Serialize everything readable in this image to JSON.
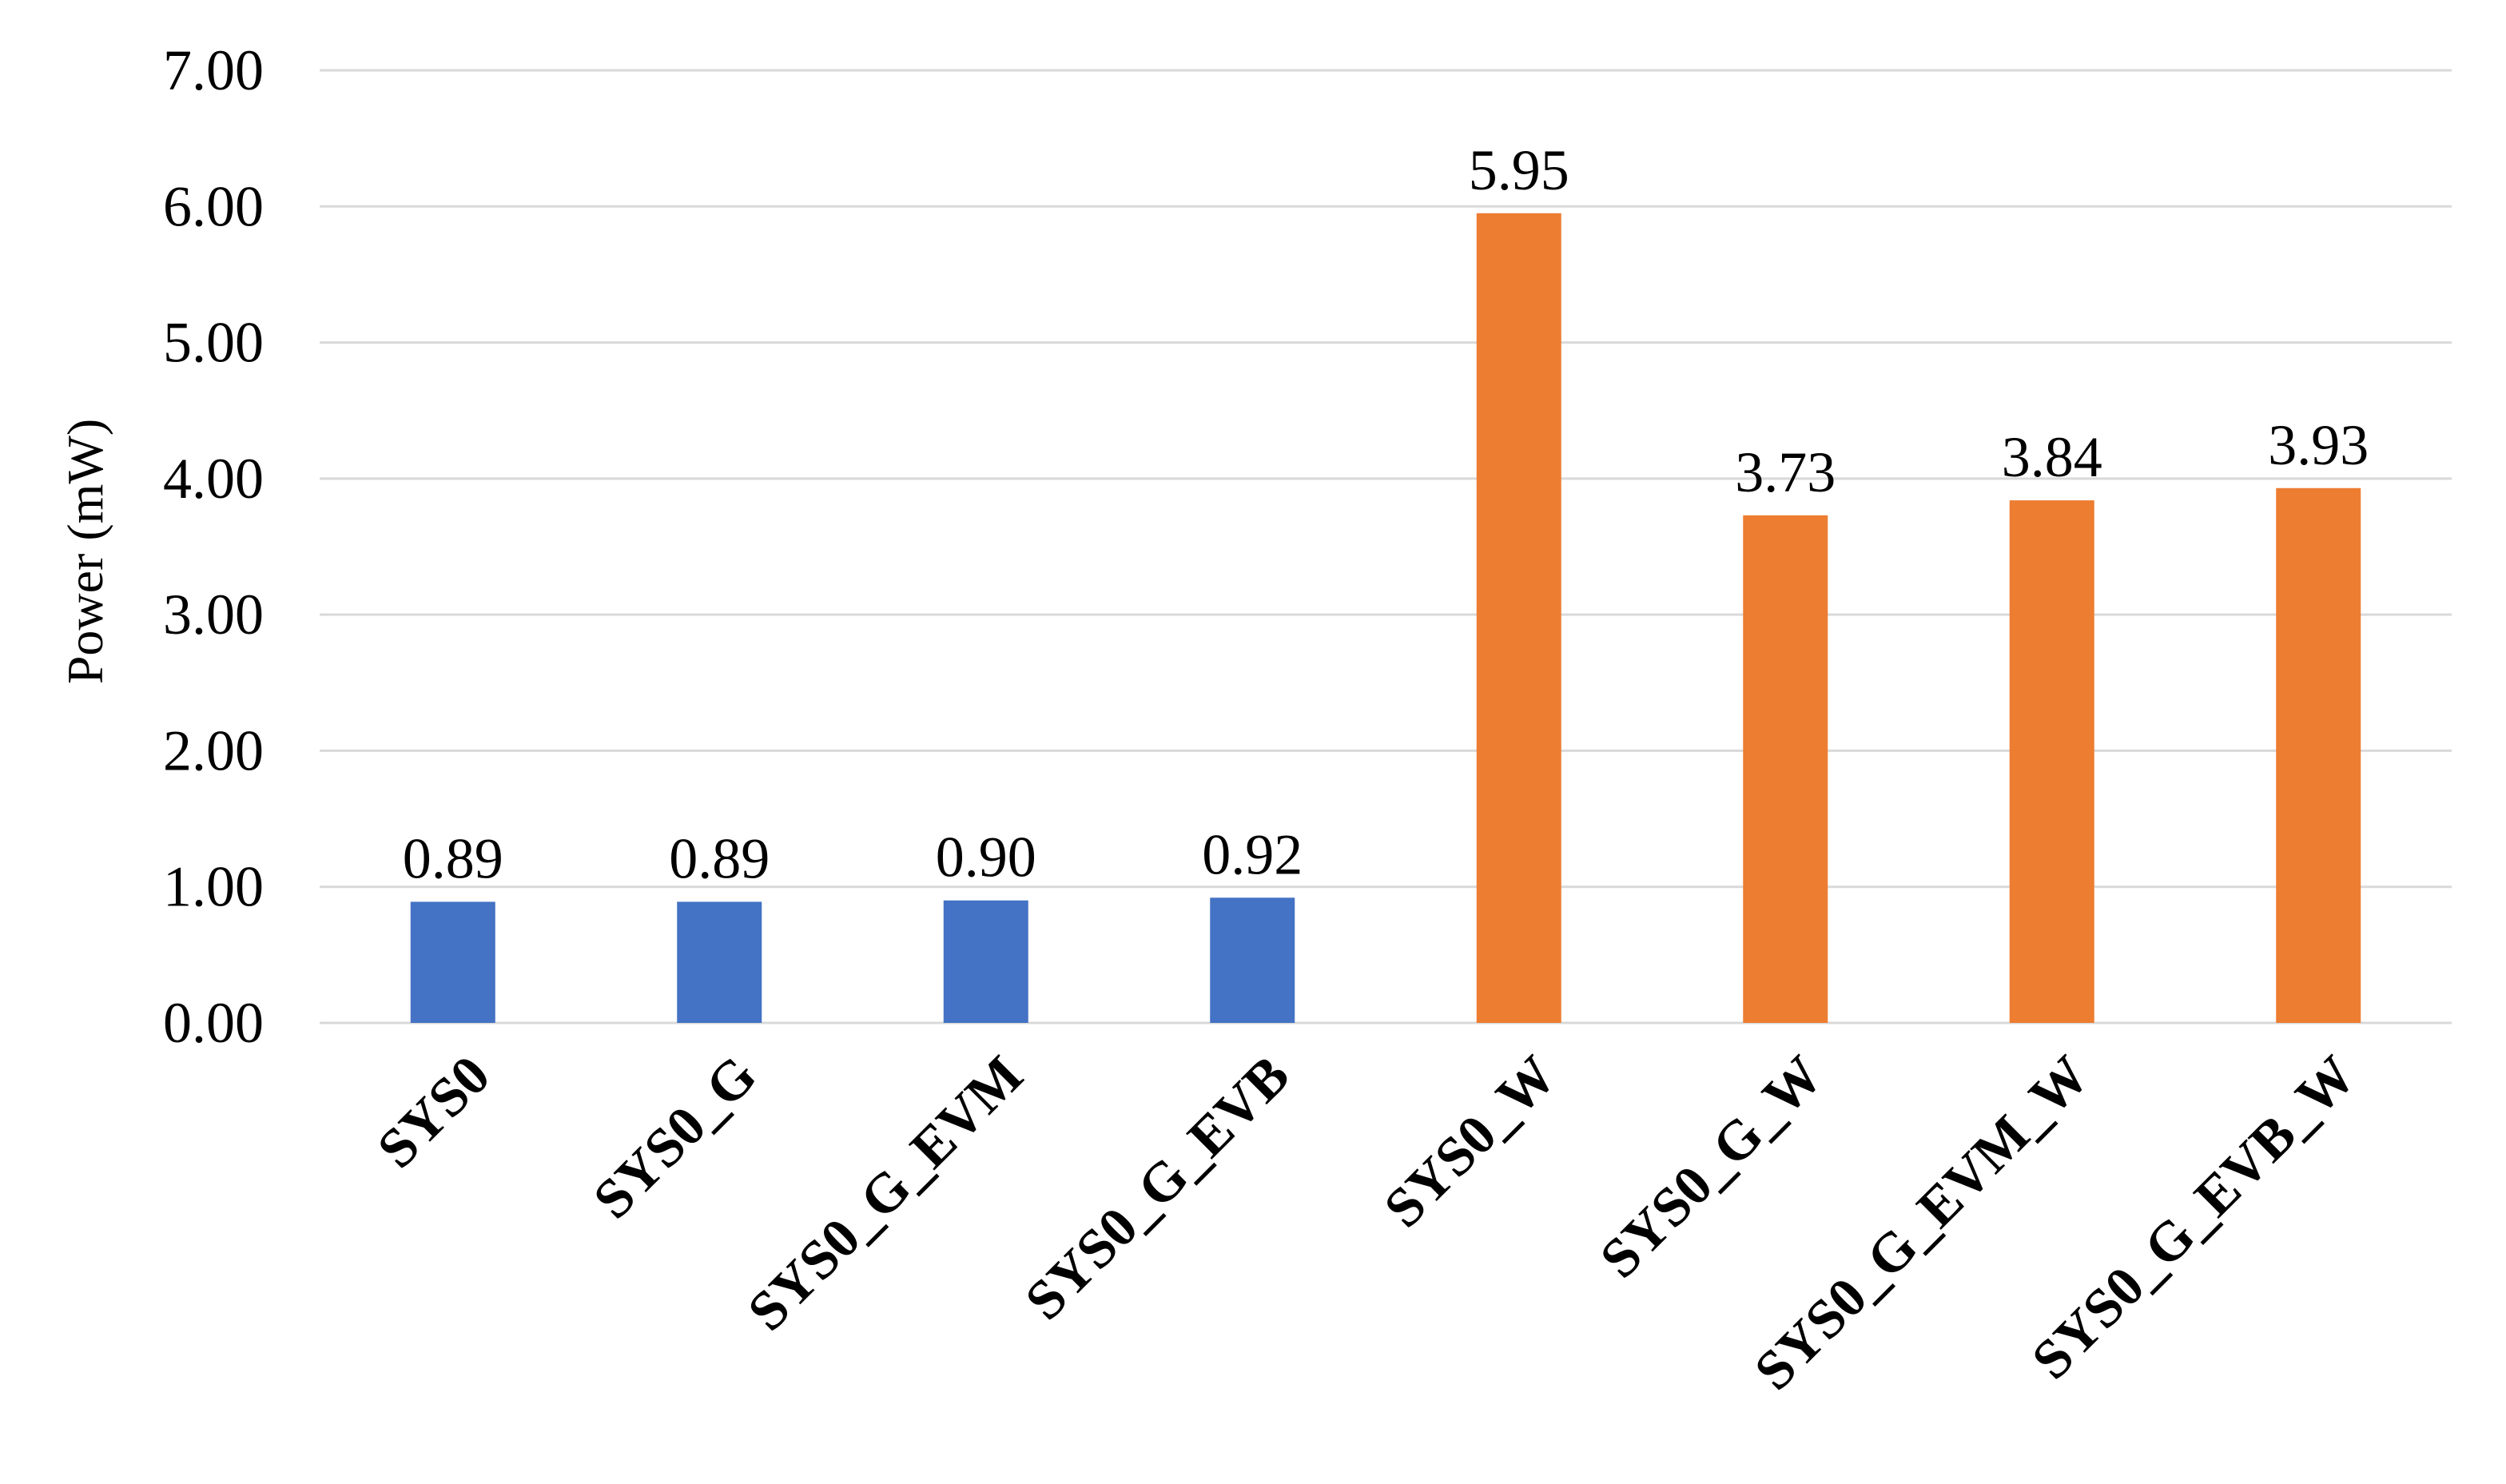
{
  "chart_data": {
    "type": "bar",
    "title": "",
    "xlabel": "",
    "ylabel": "Power (mW)",
    "ylim": [
      0,
      7
    ],
    "yticks": [
      0,
      1,
      2,
      3,
      4,
      5,
      6,
      7
    ],
    "ytick_labels": [
      "0.00",
      "1.00",
      "2.00",
      "3.00",
      "4.00",
      "5.00",
      "6.00",
      "7.00"
    ],
    "grid": true,
    "legend": "none",
    "categories": [
      "SYS0",
      "SYS0_G",
      "SYS0_G_EVM",
      "SYS0_G_EVB",
      "SYS0_W",
      "SYS0_G_W",
      "SYS0_G_EVM_W",
      "SYS0_G_EVB_W"
    ],
    "values": [
      0.89,
      0.89,
      0.9,
      0.92,
      5.95,
      3.73,
      3.84,
      3.93
    ],
    "value_labels": [
      "0.89",
      "0.89",
      "0.90",
      "0.92",
      "5.95",
      "3.73",
      "3.84",
      "3.93"
    ],
    "bar_colors": [
      "#4472c4",
      "#4472c4",
      "#4472c4",
      "#4472c4",
      "#ed7d31",
      "#ed7d31",
      "#ed7d31",
      "#ed7d31"
    ]
  }
}
